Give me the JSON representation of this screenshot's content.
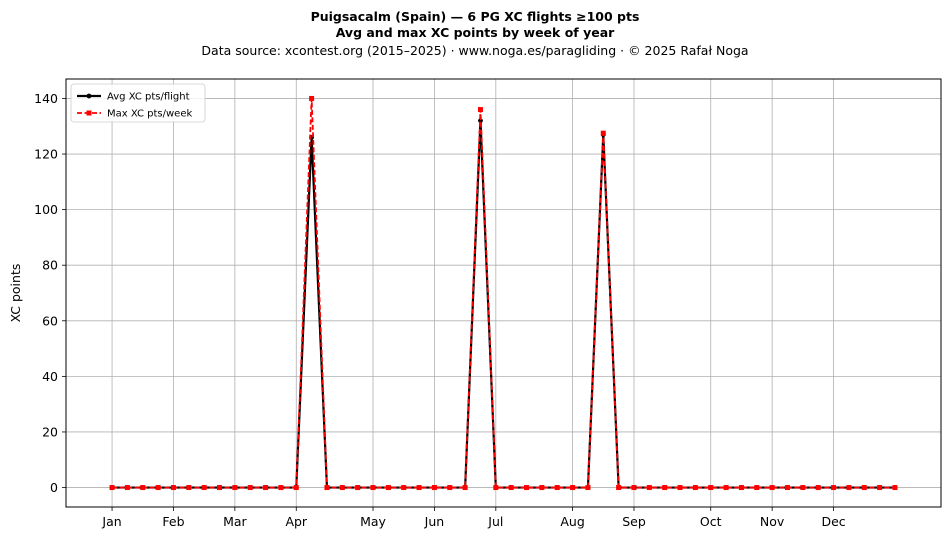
{
  "chart_data": {
    "type": "line",
    "title": "Puigsacalm (Spain)  —  6 PG XC flights ≥100 pts",
    "subtitle": "Avg and max XC points by week of year",
    "source": "Data source: xcontest.org (2015–2025)  ·  www.noga.es/paragliding  ·  © 2025 Rafał Noga",
    "xlabel": "",
    "ylabel": "XC points",
    "x_unit": "week of year",
    "xlim": [
      -2,
      55
    ],
    "ylim": [
      -7,
      147
    ],
    "yticks": [
      0,
      20,
      40,
      60,
      80,
      100,
      120,
      140
    ],
    "xticks": [
      {
        "week": 1,
        "label": "Jan"
      },
      {
        "week": 5,
        "label": "Feb"
      },
      {
        "week": 9,
        "label": "Mar"
      },
      {
        "week": 13,
        "label": "Apr"
      },
      {
        "week": 18,
        "label": "May"
      },
      {
        "week": 22,
        "label": "Jun"
      },
      {
        "week": 26,
        "label": "Jul"
      },
      {
        "week": 31,
        "label": "Aug"
      },
      {
        "week": 35,
        "label": "Sep"
      },
      {
        "week": 40,
        "label": "Oct"
      },
      {
        "week": 44,
        "label": "Nov"
      },
      {
        "week": 48,
        "label": "Dec"
      }
    ],
    "grid": true,
    "legend_position": "top-left",
    "x": [
      1,
      2,
      3,
      4,
      5,
      6,
      7,
      8,
      9,
      10,
      11,
      12,
      13,
      14,
      15,
      16,
      17,
      18,
      19,
      20,
      21,
      22,
      23,
      24,
      25,
      26,
      27,
      28,
      29,
      30,
      31,
      32,
      33,
      34,
      35,
      36,
      37,
      38,
      39,
      40,
      41,
      42,
      43,
      44,
      45,
      46,
      47,
      48,
      49,
      50,
      51,
      52
    ],
    "series": [
      {
        "name": "Avg XC pts/flight",
        "color": "#000000",
        "marker": "circle",
        "line_style": "solid",
        "values": [
          0,
          0,
          0,
          0,
          0,
          0,
          0,
          0,
          0,
          0,
          0,
          0,
          0,
          126,
          0,
          0,
          0,
          0,
          0,
          0,
          0,
          0,
          0,
          0,
          132,
          0,
          0,
          0,
          0,
          0,
          0,
          0,
          127,
          0,
          0,
          0,
          0,
          0,
          0,
          0,
          0,
          0,
          0,
          0,
          0,
          0,
          0,
          0,
          0,
          0,
          0,
          0
        ]
      },
      {
        "name": "Max XC pts/week",
        "color": "#ff0000",
        "marker": "square",
        "line_style": "dashed",
        "values": [
          0,
          0,
          0,
          0,
          0,
          0,
          0,
          0,
          0,
          0,
          0,
          0,
          0,
          140,
          0,
          0,
          0,
          0,
          0,
          0,
          0,
          0,
          0,
          0,
          136,
          0,
          0,
          0,
          0,
          0,
          0,
          0,
          127.5,
          0,
          0,
          0,
          0,
          0,
          0,
          0,
          0,
          0,
          0,
          0,
          0,
          0,
          0,
          0,
          0,
          0,
          0,
          0
        ]
      }
    ]
  }
}
